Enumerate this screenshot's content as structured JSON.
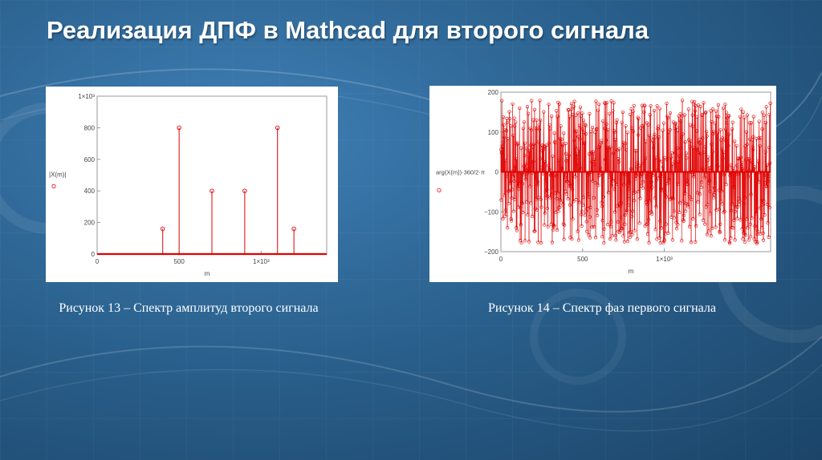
{
  "slide_title": "Реализация ДПФ в Mathcad для второго сигнала",
  "captions": {
    "fig13": "Рисунок 13 – Спектр амплитуд второго сигнала",
    "fig14": "Рисунок 14 – Спектр фаз первого сигнала"
  },
  "colors": {
    "series": "#e00000",
    "axis": "#999999",
    "tick_text": "#444444"
  },
  "chart_data": [
    {
      "type": "bar",
      "subtype": "stem",
      "xlabel": "m",
      "ylabel": "|X(m)|",
      "xlim": [
        0,
        1400
      ],
      "ylim": [
        0,
        1000
      ],
      "xticks": [
        0,
        500,
        1000
      ],
      "xtick_labels": [
        "0",
        "500",
        "1×10³"
      ],
      "yticks": [
        0,
        200,
        400,
        600,
        800,
        1000
      ],
      "ytick_labels": [
        "0",
        "200",
        "400",
        "600",
        "800",
        "1×10³"
      ],
      "stems": [
        {
          "x": 400,
          "y": 160
        },
        {
          "x": 500,
          "y": 800
        },
        {
          "x": 700,
          "y": 400
        },
        {
          "x": 900,
          "y": 400
        },
        {
          "x": 1100,
          "y": 800
        },
        {
          "x": 1200,
          "y": 160
        }
      ]
    },
    {
      "type": "scatter",
      "subtype": "stem",
      "xlabel": "m",
      "ylabel": "arg(X(m))·360/2·π",
      "xlim": [
        0,
        1650
      ],
      "ylim": [
        -200,
        200
      ],
      "xticks": [
        0,
        500,
        1000
      ],
      "xtick_labels": [
        "0",
        "500",
        "1×10³"
      ],
      "yticks": [
        -200,
        -100,
        0,
        100,
        200
      ],
      "ytick_labels": [
        "−200",
        "−100",
        "0",
        "100",
        "200"
      ],
      "n_points": 1650,
      "value_range": [
        -180,
        180
      ],
      "pattern": "dense pseudo-random phase values in ±180° with stems from 0"
    }
  ]
}
